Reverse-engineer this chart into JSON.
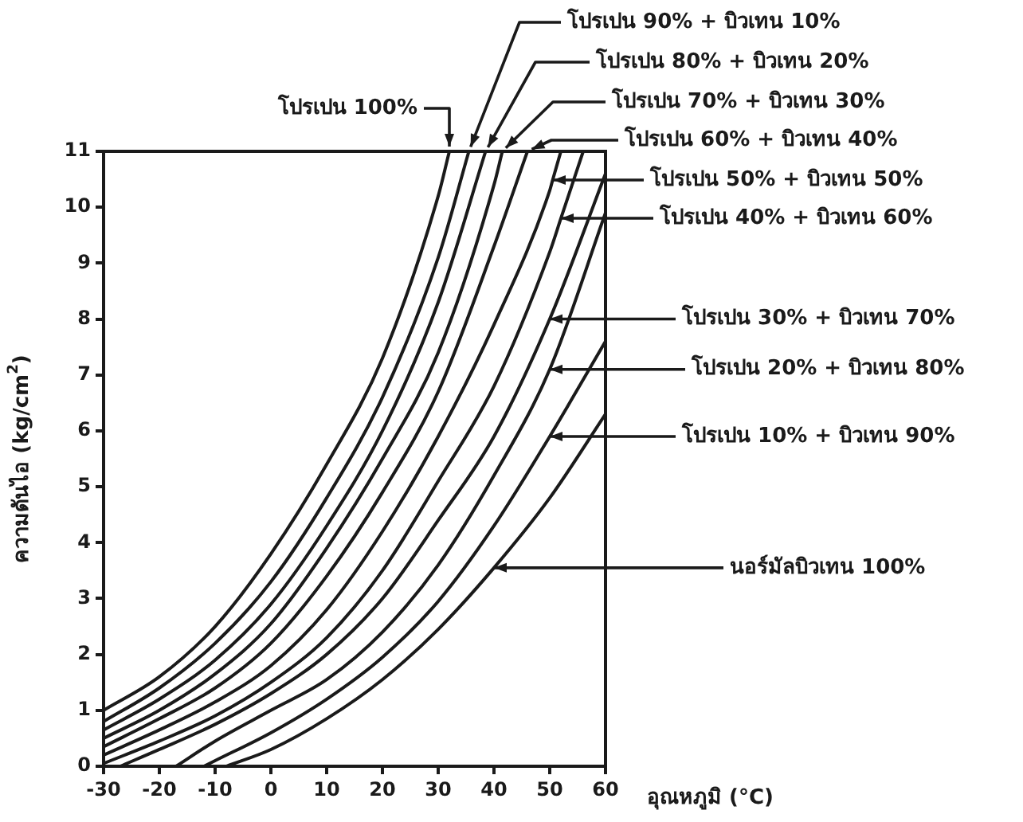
{
  "chart_data": {
    "type": "line",
    "xlabel": "อุณหภูมิ (°C)",
    "ylabel": "ความดันไอ (kg/cm$^{2}$)",
    "xlim": [
      -30,
      60
    ],
    "xticks": [
      -30,
      -20,
      -10,
      0,
      10,
      20,
      30,
      40,
      50,
      60
    ],
    "ylim": [
      0,
      11
    ],
    "yticks": [
      0,
      1,
      2,
      3,
      4,
      5,
      6,
      7,
      8,
      9,
      10,
      11
    ],
    "grid": false,
    "legend": false,
    "marker": "none",
    "line_style": "solid",
    "series": [
      {
        "color": "#1a1a1a",
        "x": [
          -30,
          -20,
          -10,
          0,
          10,
          20,
          30,
          32
        ],
        "values": [
          1.0,
          1.6,
          2.5,
          3.8,
          5.4,
          7.3,
          10.2,
          11
        ]
      },
      {
        "color": "#1a1a1a",
        "x": [
          -30,
          -20,
          -10,
          0,
          10,
          20,
          30,
          35.5
        ],
        "values": [
          0.8,
          1.4,
          2.2,
          3.3,
          4.8,
          6.6,
          9.1,
          11
        ]
      },
      {
        "color": "#1a1a1a",
        "x": [
          -30,
          -20,
          -10,
          0,
          10,
          20,
          30,
          38.5
        ],
        "values": [
          0.65,
          1.2,
          1.9,
          2.9,
          4.3,
          6.0,
          8.3,
          11
        ]
      },
      {
        "color": "#1a1a1a",
        "x": [
          -30,
          -20,
          -10,
          0,
          10,
          20,
          30,
          40,
          41.5
        ],
        "values": [
          0.5,
          1.0,
          1.65,
          2.55,
          3.9,
          5.5,
          7.4,
          10.4,
          11
        ]
      },
      {
        "color": "#1a1a1a",
        "x": [
          -30,
          -20,
          -10,
          0,
          10,
          20,
          30,
          40,
          46
        ],
        "values": [
          0.35,
          0.85,
          1.4,
          2.2,
          3.4,
          4.9,
          6.7,
          9.3,
          11
        ]
      },
      {
        "color": "#1a1a1a",
        "x": [
          -30,
          -20,
          -10,
          0,
          10,
          20,
          30,
          40,
          50,
          50.5,
          52
        ],
        "values": [
          0.2,
          0.65,
          1.15,
          1.8,
          2.8,
          4.2,
          5.9,
          7.9,
          10.3,
          10.48,
          11
        ]
      },
      {
        "color": "#1a1a1a",
        "x": [
          -30,
          -20,
          -10,
          0,
          10,
          20,
          30,
          40,
          50,
          52,
          56
        ],
        "values": [
          0.05,
          0.45,
          0.9,
          1.5,
          2.3,
          3.5,
          5.1,
          6.8,
          9.2,
          9.8,
          11
        ]
      },
      {
        "color": "#1a1a1a",
        "x": [
          -27,
          -20,
          -10,
          0,
          10,
          20,
          30,
          40,
          50,
          60
        ],
        "values": [
          0,
          0.3,
          0.75,
          1.3,
          2.0,
          3.0,
          4.4,
          5.9,
          8.0,
          10.6
        ]
      },
      {
        "color": "#1a1a1a",
        "x": [
          -17,
          -10,
          0,
          10,
          20,
          30,
          40,
          50,
          60
        ],
        "values": [
          0,
          0.45,
          1.0,
          1.55,
          2.4,
          3.6,
          5.2,
          7.1,
          9.9
        ]
      },
      {
        "color": "#1a1a1a",
        "x": [
          -12,
          -10,
          0,
          10,
          20,
          30,
          40,
          50,
          60
        ],
        "values": [
          0,
          0.1,
          0.6,
          1.2,
          1.95,
          2.95,
          4.3,
          5.9,
          7.6
        ]
      },
      {
        "color": "#1a1a1a",
        "x": [
          -8,
          0,
          10,
          20,
          30,
          40,
          50,
          60
        ],
        "values": [
          0,
          0.3,
          0.85,
          1.55,
          2.45,
          3.55,
          4.8,
          6.3
        ]
      }
    ],
    "annotations": [
      {
        "text": "โปรเปน 100%",
        "x": 32,
        "y": 11
      },
      {
        "text": "โปรเปน 90% + บิวเทน 10%",
        "x": 35.5,
        "y": 11
      },
      {
        "text": "โปรเปน 80% + บิวเทน 20%",
        "x": 38.5,
        "y": 11
      },
      {
        "text": "โปรเปน 70% + บิวเทน 30%",
        "x": 41.5,
        "y": 11
      },
      {
        "text": "โปรเปน 60% + บิวเทน 40%",
        "x": 46,
        "y": 11
      },
      "โปรเปน 50% + บิวเทน 50%",
      "โปรเปน 40% + บิวเทน 60%",
      {
        "text": "โปรเปน 30% + บิวเทน 70%",
        "x": 50,
        "y": 8.0
      },
      {
        "text": "โปรเปน 20% + บิวเทน 80%",
        "x": 50,
        "y": 7.1
      },
      {
        "text": "โปรเปน 10% + บิวเทน 90%",
        "x": 50,
        "y": 5.9
      },
      {
        "text": "นอร์มัลบิวเทน 100%",
        "x": 40,
        "y": 3.55
      }
    ]
  }
}
